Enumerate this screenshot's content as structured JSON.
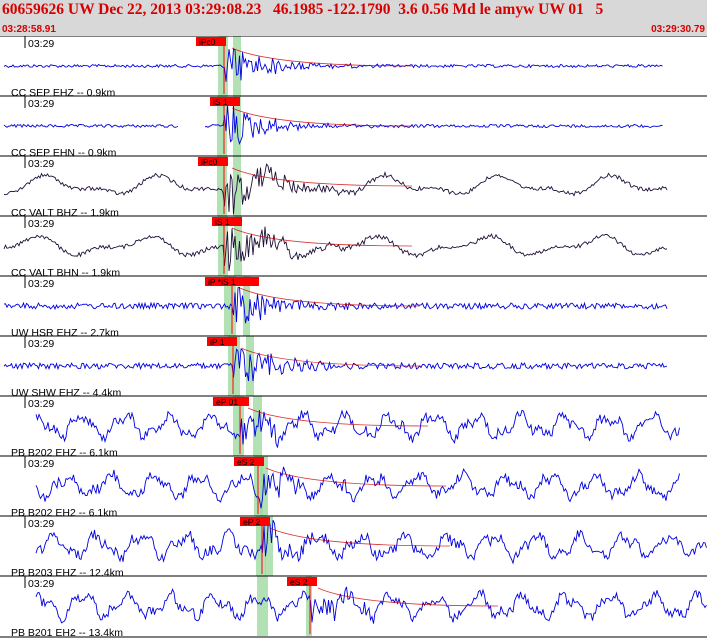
{
  "header": {
    "title": "60659626 UW Dec 22, 2013 03:29:08.23   46.1985 -122.1790  3.6 0.56 Md le amyw UW 01   5",
    "time_start": "03:28:58.91",
    "time_end": "03:29:30.79"
  },
  "colors": {
    "header_bg": "#d8d8d8",
    "header_text": "#d60000",
    "trace_blue": "#0000e0",
    "trace_dark": "#20103a",
    "pick_red": "#ff0000",
    "pick_window": "#9fd9a0",
    "fit_curve": "#d00000"
  },
  "traces": [
    {
      "label": "CC SEP EHZ -- 0.9km",
      "tick": "03:29",
      "color": "blue",
      "pick": "iPc0",
      "kind": "onset"
    },
    {
      "label": "CC SEP EHN -- 0.9km",
      "tick": "03:29",
      "color": "blue",
      "pick": "iS 1",
      "kind": "gap"
    },
    {
      "label": "CC VALT BHZ -- 1.9km",
      "tick": "03:29",
      "color": "dark",
      "pick": "iPc0",
      "kind": "long"
    },
    {
      "label": "CC VALT BHN -- 1.9km",
      "tick": "03:29",
      "color": "dark",
      "pick": "iS 1",
      "kind": "long"
    },
    {
      "label": "UW HSR EHZ -- 2.7km",
      "tick": "03:29",
      "color": "blue",
      "pick": "iP *iS 1",
      "kind": "noisy"
    },
    {
      "label": "UW SHW EHZ -- 4.4km",
      "tick": "03:29",
      "color": "blue",
      "pick": "iP 1",
      "kind": "noisy"
    },
    {
      "label": "PB B202 EHZ -- 6.1km",
      "tick": "03:29",
      "color": "blue",
      "pick": "eP 01",
      "kind": "wavy"
    },
    {
      "label": "PB B202 EH2 -- 6.1km",
      "tick": "03:29",
      "color": "blue",
      "pick": "eS 2",
      "kind": "wavy"
    },
    {
      "label": "PB B203 EHZ -- 12.4km",
      "tick": "03:29",
      "color": "blue",
      "pick": "eP 2",
      "kind": "wavy"
    },
    {
      "label": "PB B201 EH2 -- 13.4km",
      "tick": "03:29",
      "color": "blue",
      "pick": "eS 2",
      "kind": "wavy"
    }
  ]
}
